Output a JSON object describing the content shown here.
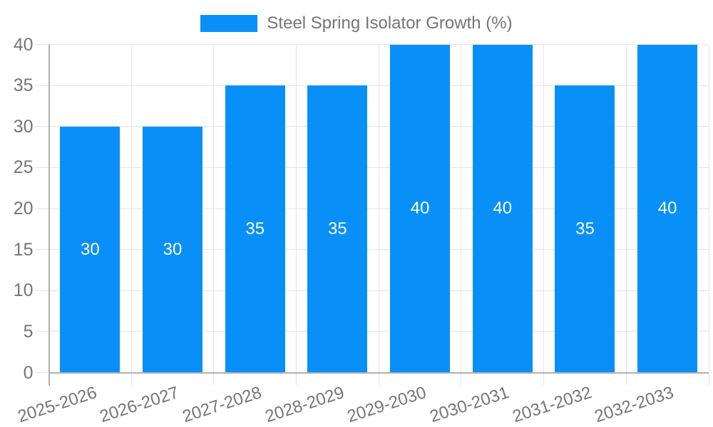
{
  "legend": {
    "label": "Steel Spring Isolator Growth (%)"
  },
  "colors": {
    "bar": "#0890f8",
    "text": "#757575",
    "grid": "#e4e4e4",
    "axis": "#b0b0b0",
    "bar_label": "#ffffff",
    "background": "#ffffff"
  },
  "chart_data": {
    "type": "bar",
    "title": "Steel Spring Isolator Growth (%)",
    "categories": [
      "2025-2026",
      "2026-2027",
      "2027-2028",
      "2028-2029",
      "2029-2030",
      "2030-2031",
      "2031-2032",
      "2032-2033"
    ],
    "series": [
      {
        "name": "Steel Spring Isolator Growth (%)",
        "values": [
          30,
          30,
          35,
          35,
          40,
          40,
          35,
          40
        ]
      }
    ],
    "values": [
      30,
      30,
      35,
      35,
      40,
      40,
      35,
      40
    ],
    "bar_value_labels": [
      "30",
      "30",
      "35",
      "35",
      "40",
      "40",
      "35",
      "40"
    ],
    "ylim": [
      0,
      40
    ],
    "yticks": [
      0,
      5,
      10,
      15,
      20,
      25,
      30,
      35,
      40
    ],
    "xlabel": "",
    "ylabel": "",
    "grid": true,
    "legend_position": "top-center",
    "xlabel_rotation_deg": -18,
    "bar_labels_inside": true
  }
}
